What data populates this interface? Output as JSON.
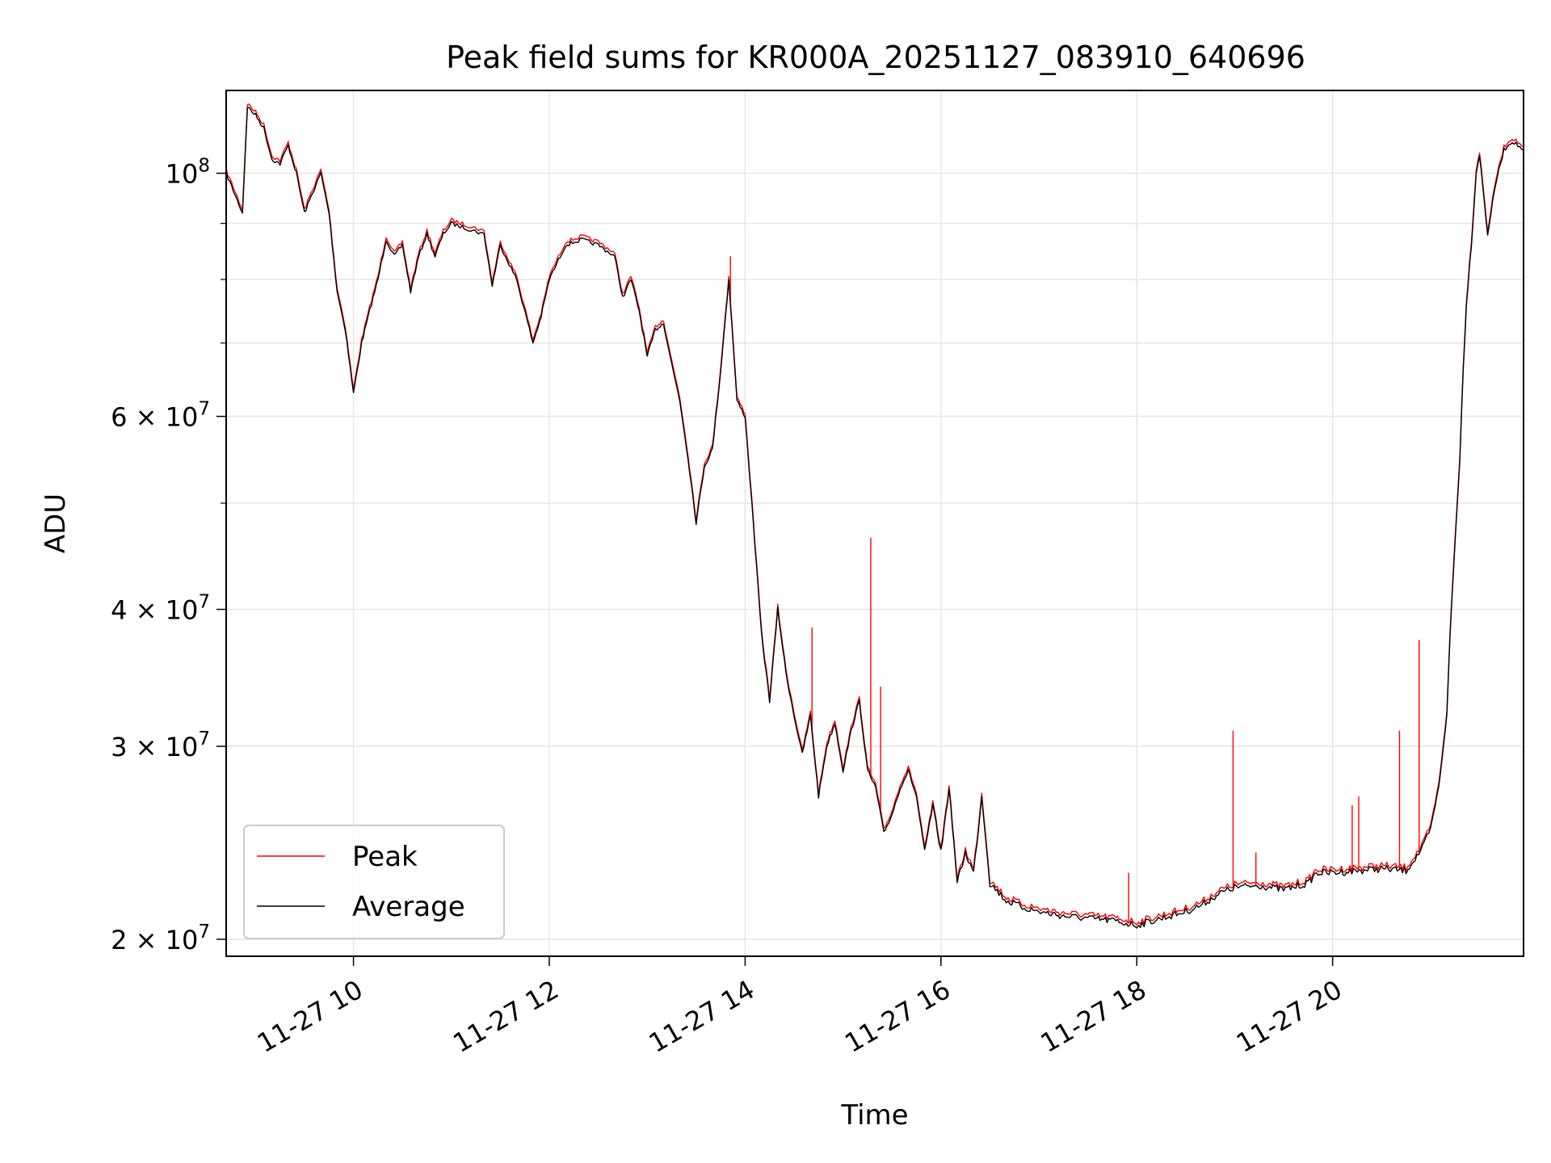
{
  "chart_data": {
    "type": "line",
    "title": "Peak field sums for KR000A_20251127_083910_640696",
    "xlabel": "Time",
    "ylabel": "ADU",
    "yscale": "log",
    "grid": true,
    "legend_position": "lower-left",
    "xlim": [
      "2025-11-27 08:42",
      "2025-11-27 21:57"
    ],
    "ylim": [
      19300000,
      119000000
    ],
    "x_ticks": [
      {
        "value": "2025-11-27 10:00",
        "label": "11-27 10"
      },
      {
        "value": "2025-11-27 12:00",
        "label": "11-27 12"
      },
      {
        "value": "2025-11-27 14:00",
        "label": "11-27 14"
      },
      {
        "value": "2025-11-27 16:00",
        "label": "11-27 16"
      },
      {
        "value": "2025-11-27 18:00",
        "label": "11-27 18"
      },
      {
        "value": "2025-11-27 20:00",
        "label": "11-27 20"
      }
    ],
    "y_ticks": [
      {
        "value": 20000000,
        "mantissa": "2 × 10",
        "exponent": "7"
      },
      {
        "value": 30000000,
        "mantissa": "3 × 10",
        "exponent": "7"
      },
      {
        "value": 40000000,
        "mantissa": "4 × 10",
        "exponent": "7"
      },
      {
        "value": 60000000,
        "mantissa": "6 × 10",
        "exponent": "7"
      },
      {
        "value": 100000000,
        "mantissa": "10",
        "exponent": "8"
      }
    ],
    "y_minor_ticks": [
      50000000,
      70000000,
      80000000,
      90000000
    ],
    "series": [
      {
        "name": "Peak",
        "color": "#ff0000",
        "spikes": [
          {
            "x": "2025-11-27 13:51",
            "y": 84000000
          },
          {
            "x": "2025-11-27 14:41",
            "y": 38500000
          },
          {
            "x": "2025-11-27 15:17",
            "y": 46500000
          },
          {
            "x": "2025-11-27 15:23",
            "y": 34000000
          },
          {
            "x": "2025-11-27 17:55",
            "y": 23000000
          },
          {
            "x": "2025-11-27 18:59",
            "y": 31000000
          },
          {
            "x": "2025-11-27 19:13",
            "y": 24000000
          },
          {
            "x": "2025-11-27 20:12",
            "y": 26500000
          },
          {
            "x": "2025-11-27 20:16",
            "y": 27000000
          },
          {
            "x": "2025-11-27 20:41",
            "y": 31000000
          },
          {
            "x": "2025-11-27 20:53",
            "y": 37500000
          }
        ]
      },
      {
        "name": "Average",
        "color": "#000000"
      }
    ],
    "x": [
      "2025-11-27 08:42",
      "2025-11-27 08:52",
      "2025-11-27 08:55",
      "2025-11-27 09:00",
      "2025-11-27 09:05",
      "2025-11-27 09:10",
      "2025-11-27 09:15",
      "2025-11-27 09:20",
      "2025-11-27 09:25",
      "2025-11-27 09:30",
      "2025-11-27 09:35",
      "2025-11-27 09:40",
      "2025-11-27 09:45",
      "2025-11-27 09:50",
      "2025-11-27 09:55",
      "2025-11-27 10:00",
      "2025-11-27 10:05",
      "2025-11-27 10:10",
      "2025-11-27 10:15",
      "2025-11-27 10:20",
      "2025-11-27 10:25",
      "2025-11-27 10:30",
      "2025-11-27 10:35",
      "2025-11-27 10:40",
      "2025-11-27 10:45",
      "2025-11-27 10:50",
      "2025-11-27 10:55",
      "2025-11-27 11:00",
      "2025-11-27 11:10",
      "2025-11-27 11:20",
      "2025-11-27 11:25",
      "2025-11-27 11:30",
      "2025-11-27 11:40",
      "2025-11-27 11:50",
      "2025-11-27 11:55",
      "2025-11-27 12:00",
      "2025-11-27 12:10",
      "2025-11-27 12:20",
      "2025-11-27 12:30",
      "2025-11-27 12:40",
      "2025-11-27 12:45",
      "2025-11-27 12:50",
      "2025-11-27 12:55",
      "2025-11-27 13:00",
      "2025-11-27 13:05",
      "2025-11-27 13:10",
      "2025-11-27 13:15",
      "2025-11-27 13:20",
      "2025-11-27 13:25",
      "2025-11-27 13:30",
      "2025-11-27 13:35",
      "2025-11-27 13:40",
      "2025-11-27 13:45",
      "2025-11-27 13:50",
      "2025-11-27 13:55",
      "2025-11-27 14:00",
      "2025-11-27 14:05",
      "2025-11-27 14:10",
      "2025-11-27 14:15",
      "2025-11-27 14:20",
      "2025-11-27 14:25",
      "2025-11-27 14:30",
      "2025-11-27 14:35",
      "2025-11-27 14:40",
      "2025-11-27 14:45",
      "2025-11-27 14:50",
      "2025-11-27 14:55",
      "2025-11-27 15:00",
      "2025-11-27 15:05",
      "2025-11-27 15:10",
      "2025-11-27 15:15",
      "2025-11-27 15:20",
      "2025-11-27 15:25",
      "2025-11-27 15:30",
      "2025-11-27 15:35",
      "2025-11-27 15:40",
      "2025-11-27 15:45",
      "2025-11-27 15:50",
      "2025-11-27 15:55",
      "2025-11-27 16:00",
      "2025-11-27 16:05",
      "2025-11-27 16:10",
      "2025-11-27 16:15",
      "2025-11-27 16:20",
      "2025-11-27 16:25",
      "2025-11-27 16:30",
      "2025-11-27 16:40",
      "2025-11-27 16:50",
      "2025-11-27 17:00",
      "2025-11-27 17:15",
      "2025-11-27 17:30",
      "2025-11-27 17:45",
      "2025-11-27 18:00",
      "2025-11-27 18:10",
      "2025-11-27 18:20",
      "2025-11-27 18:30",
      "2025-11-27 18:40",
      "2025-11-27 18:50",
      "2025-11-27 19:00",
      "2025-11-27 19:15",
      "2025-11-27 19:30",
      "2025-11-27 19:45",
      "2025-11-27 19:50",
      "2025-11-27 20:00",
      "2025-11-27 20:15",
      "2025-11-27 20:30",
      "2025-11-27 20:45",
      "2025-11-27 20:55",
      "2025-11-27 21:00",
      "2025-11-27 21:05",
      "2025-11-27 21:10",
      "2025-11-27 21:12",
      "2025-11-27 21:15",
      "2025-11-27 21:18",
      "2025-11-27 21:20",
      "2025-11-27 21:22",
      "2025-11-27 21:25",
      "2025-11-27 21:28",
      "2025-11-27 21:30",
      "2025-11-27 21:35",
      "2025-11-27 21:40",
      "2025-11-27 21:45",
      "2025-11-27 21:50",
      "2025-11-27 21:57"
    ],
    "average": [
      100000000,
      92000000,
      115000000,
      113000000,
      110000000,
      103000000,
      102000000,
      106000000,
      100000000,
      92000000,
      96000000,
      100000000,
      92000000,
      78000000,
      72000000,
      63000000,
      70000000,
      75000000,
      80000000,
      87000000,
      84000000,
      86000000,
      78000000,
      84000000,
      88000000,
      84000000,
      88000000,
      90000000,
      89000000,
      88000000,
      79000000,
      86000000,
      80000000,
      70000000,
      74000000,
      80000000,
      86000000,
      87000000,
      86000000,
      84000000,
      77000000,
      80000000,
      75000000,
      68000000,
      72000000,
      73000000,
      67000000,
      62000000,
      55000000,
      48000000,
      54000000,
      56000000,
      66000000,
      80000000,
      62000000,
      60000000,
      48000000,
      38000000,
      33000000,
      40000000,
      35000000,
      32000000,
      29500000,
      32000000,
      27000000,
      30000000,
      31500000,
      28500000,
      31000000,
      33000000,
      28500000,
      27500000,
      25000000,
      26000000,
      27500000,
      28500000,
      27000000,
      24000000,
      26500000,
      24000000,
      27500000,
      22500000,
      24000000,
      23000000,
      27000000,
      22500000,
      21700000,
      21400000,
      21200000,
      21000000,
      20900000,
      20800000,
      20600000,
      20800000,
      21000000,
      21200000,
      21500000,
      22000000,
      22300000,
      22400000,
      22200000,
      22500000,
      23000000,
      23000000,
      23100000,
      23200000,
      23100000,
      24200000,
      25200000,
      27500000,
      32000000,
      38000000,
      46000000,
      55000000,
      66000000,
      76000000,
      86000000,
      100000000,
      104000000,
      88000000,
      98000000,
      105000000,
      107000000,
      105000000
    ]
  }
}
